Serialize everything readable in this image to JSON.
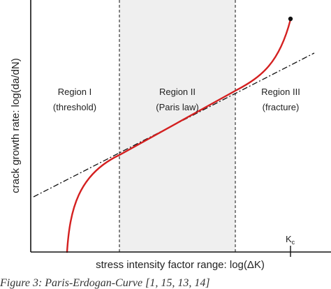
{
  "regions": [
    {
      "name": "Region I",
      "description": "(threshold)"
    },
    {
      "name": "Region II",
      "description": "(Paris law)"
    },
    {
      "name": "Region III",
      "description": "(fracture)"
    }
  ],
  "axes": {
    "y_label": "crack growth rate: log(da/dN)",
    "x_label": "stress intensity factor range: log(ΔK)",
    "kc_label": "K",
    "kc_subscript": "c"
  },
  "caption": "Figure 3: Paris-Erdogan-Curve [1, 15, 13, 14]",
  "colors": {
    "curve": "#d42020",
    "axis": "#111111",
    "paris_line": "#111111",
    "region2_shading": "#efefef"
  }
}
